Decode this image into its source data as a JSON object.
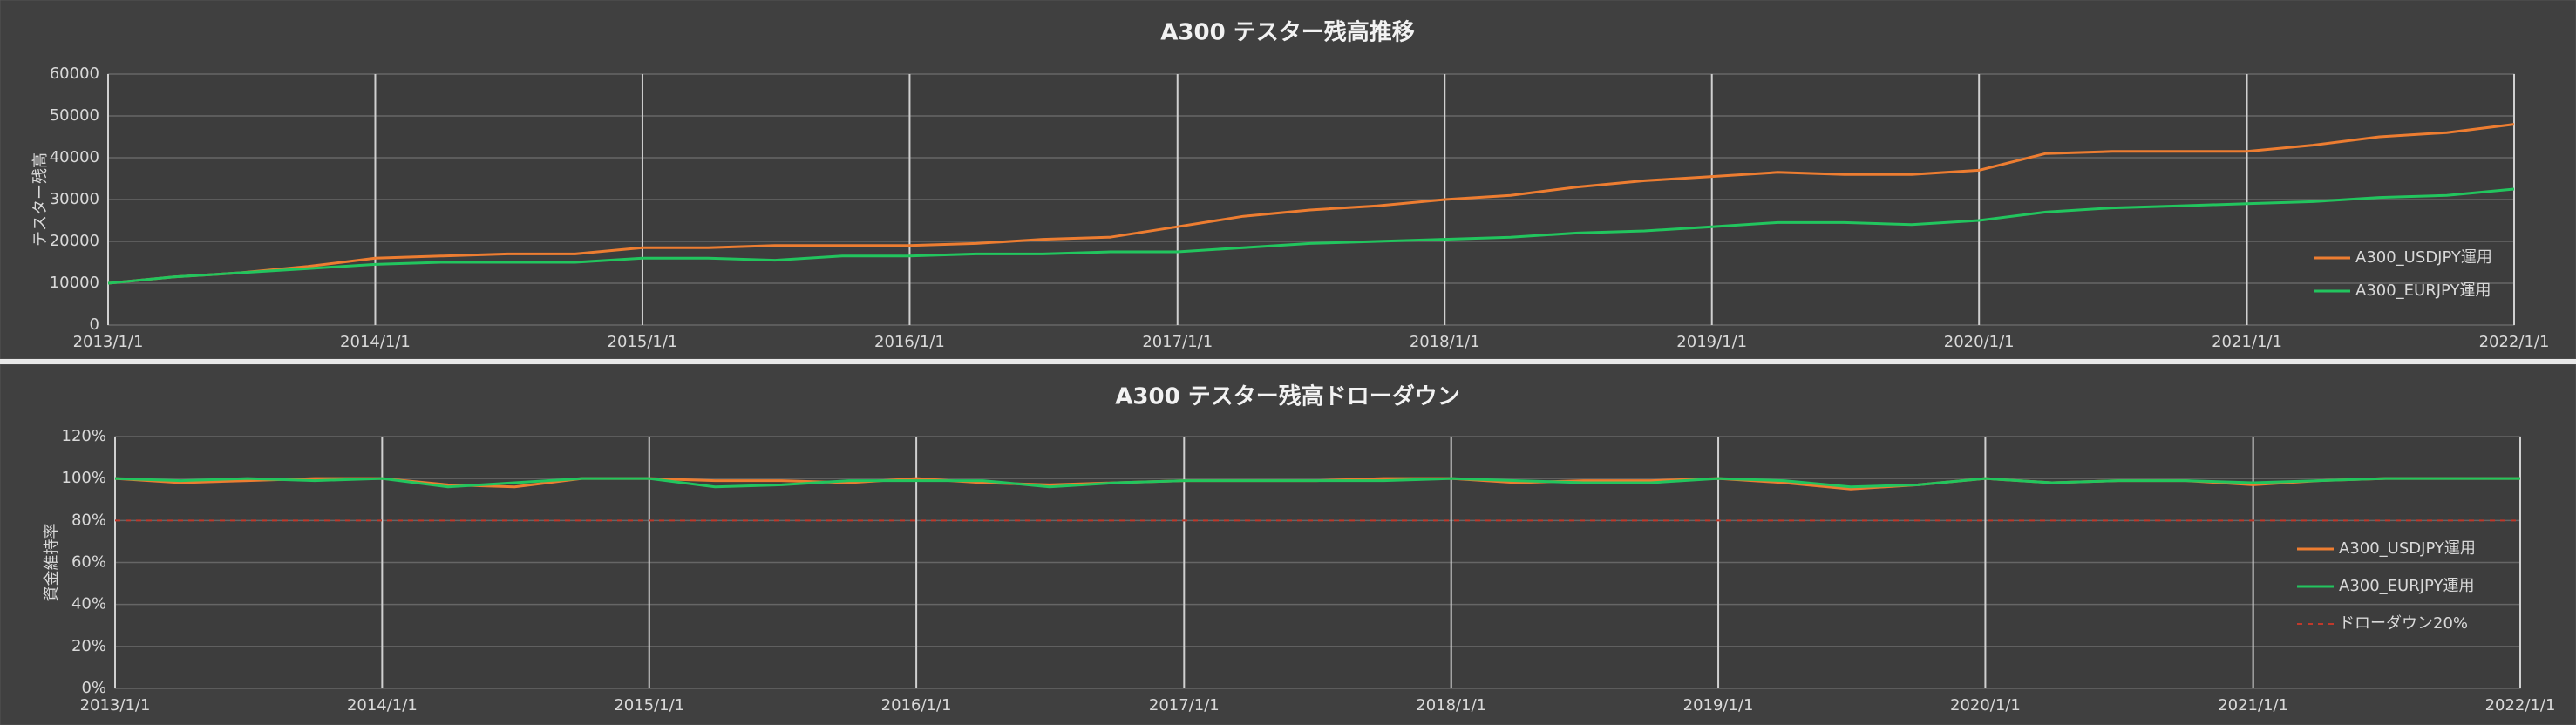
{
  "chart_data": [
    {
      "type": "line",
      "title": "A300 テスター残高推移",
      "y_label": "テスター残高",
      "xlim": [
        "2013/1/1",
        "2022/1/1"
      ],
      "xticks": [
        "2013/1/1",
        "2014/1/1",
        "2015/1/1",
        "2016/1/1",
        "2017/1/1",
        "2018/1/1",
        "2019/1/1",
        "2020/1/1",
        "2021/1/1",
        "2022/1/1"
      ],
      "ylim": [
        0,
        60000
      ],
      "yticks": [
        0,
        10000,
        20000,
        30000,
        40000,
        50000,
        60000
      ],
      "grid": true,
      "legend": "right",
      "x": [
        "2013/1/1",
        "2013/4/1",
        "2013/7/1",
        "2013/10/1",
        "2014/1/1",
        "2014/4/1",
        "2014/7/1",
        "2014/10/1",
        "2015/1/1",
        "2015/4/1",
        "2015/7/1",
        "2015/10/1",
        "2016/1/1",
        "2016/4/1",
        "2016/7/1",
        "2016/10/1",
        "2017/1/1",
        "2017/4/1",
        "2017/7/1",
        "2017/10/1",
        "2018/1/1",
        "2018/4/1",
        "2018/7/1",
        "2018/10/1",
        "2019/1/1",
        "2019/4/1",
        "2019/7/1",
        "2019/10/1",
        "2020/1/1",
        "2020/4/1",
        "2020/7/1",
        "2020/10/1",
        "2021/1/1",
        "2021/4/1",
        "2021/7/1",
        "2021/10/1",
        "2022/1/1"
      ],
      "series": [
        {
          "name": "A300_USDJPY運用",
          "color": "#ed7d31",
          "values": [
            10000,
            11500,
            12500,
            14000,
            16000,
            16500,
            17000,
            17000,
            18500,
            18500,
            19000,
            19000,
            19000,
            19500,
            20500,
            21000,
            23500,
            26000,
            27500,
            28500,
            30000,
            31000,
            33000,
            34500,
            35500,
            36500,
            36000,
            36000,
            37000,
            41000,
            41500,
            41500,
            41500,
            43000,
            45000,
            46000,
            48000
          ]
        },
        {
          "name": "A300_EURJPY運用",
          "color": "#22c55e",
          "values": [
            10000,
            11500,
            12500,
            13500,
            14500,
            15000,
            15000,
            15000,
            16000,
            16000,
            15500,
            16500,
            16500,
            17000,
            17000,
            17500,
            17500,
            18500,
            19500,
            20000,
            20500,
            21000,
            22000,
            22500,
            23500,
            24500,
            24500,
            24000,
            25000,
            27000,
            28000,
            28500,
            29000,
            29500,
            30500,
            31000,
            32500
          ]
        }
      ]
    },
    {
      "type": "line",
      "title": "A300 テスター残高ドローダウン",
      "y_label": "資金維持率",
      "xlim": [
        "2013/1/1",
        "2022/1/1"
      ],
      "xticks": [
        "2013/1/1",
        "2014/1/1",
        "2015/1/1",
        "2016/1/1",
        "2017/1/1",
        "2018/1/1",
        "2019/1/1",
        "2020/1/1",
        "2021/1/1",
        "2022/1/1"
      ],
      "ylim": [
        0,
        120
      ],
      "yticks": [
        {
          "value": 0,
          "label": "0%"
        },
        {
          "value": 20,
          "label": "20%"
        },
        {
          "value": 40,
          "label": "40%"
        },
        {
          "value": 60,
          "label": "60%"
        },
        {
          "value": 80,
          "label": "80%"
        },
        {
          "value": 100,
          "label": "100%"
        },
        {
          "value": 120,
          "label": "120%"
        }
      ],
      "grid": true,
      "legend": "right",
      "x": [
        "2013/1/1",
        "2013/4/1",
        "2013/7/1",
        "2013/10/1",
        "2014/1/1",
        "2014/4/1",
        "2014/7/1",
        "2014/10/1",
        "2015/1/1",
        "2015/4/1",
        "2015/7/1",
        "2015/10/1",
        "2016/1/1",
        "2016/4/1",
        "2016/7/1",
        "2016/10/1",
        "2017/1/1",
        "2017/4/1",
        "2017/7/1",
        "2017/10/1",
        "2018/1/1",
        "2018/4/1",
        "2018/7/1",
        "2018/10/1",
        "2019/1/1",
        "2019/4/1",
        "2019/7/1",
        "2019/10/1",
        "2020/1/1",
        "2020/4/1",
        "2020/7/1",
        "2020/10/1",
        "2021/1/1",
        "2021/4/1",
        "2021/7/1",
        "2021/10/1",
        "2022/1/1"
      ],
      "series": [
        {
          "name": "A300_USDJPY運用",
          "color": "#ed7d31",
          "values": [
            100,
            98,
            99,
            100,
            100,
            97,
            96,
            100,
            100,
            99,
            99,
            98,
            100,
            98,
            97,
            98,
            99,
            99,
            99,
            100,
            100,
            98,
            99,
            99,
            100,
            98,
            95,
            97,
            100,
            98,
            99,
            99,
            97,
            99,
            100,
            100,
            100
          ]
        },
        {
          "name": "A300_EURJPY運用",
          "color": "#22c55e",
          "values": [
            100,
            99,
            100,
            99,
            100,
            96,
            98,
            100,
            100,
            96,
            97,
            99,
            99,
            99,
            96,
            98,
            99,
            99,
            99,
            99,
            100,
            99,
            98,
            98,
            100,
            99,
            96,
            97,
            100,
            98,
            99,
            99,
            98,
            99,
            100,
            100,
            100
          ]
        },
        {
          "name": "ドローダウン20%",
          "color": "#c0392b",
          "dashed": true,
          "values": [
            80,
            80,
            80,
            80,
            80,
            80,
            80,
            80,
            80,
            80,
            80,
            80,
            80,
            80,
            80,
            80,
            80,
            80,
            80,
            80,
            80,
            80,
            80,
            80,
            80,
            80,
            80,
            80,
            80,
            80,
            80,
            80,
            80,
            80,
            80,
            80,
            80
          ]
        }
      ]
    }
  ]
}
